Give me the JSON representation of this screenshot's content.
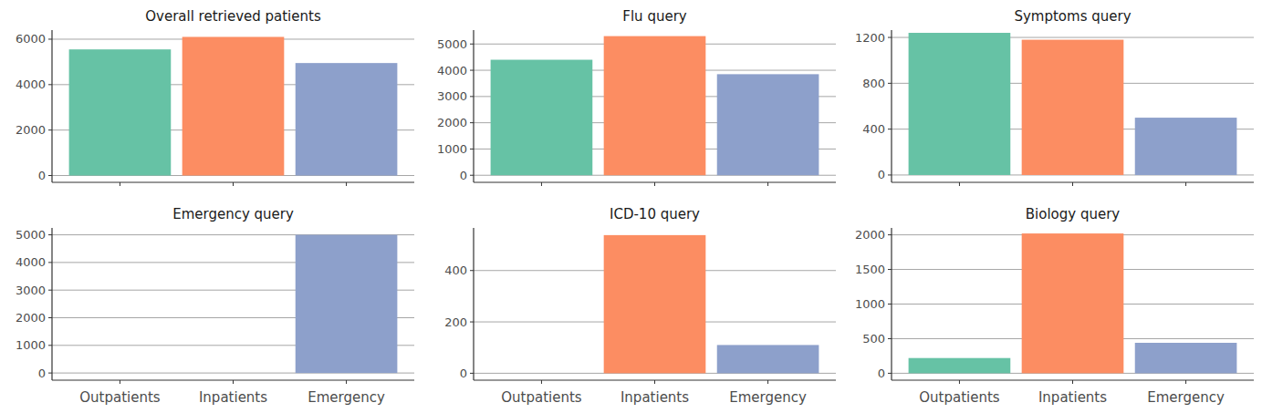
{
  "chart_data": [
    {
      "type": "bar",
      "title": "Overall retrieved patients",
      "categories": [
        "Outpatients",
        "Inpatients",
        "Emergency"
      ],
      "values": [
        5550,
        6100,
        4950
      ],
      "colors": [
        "#66c2a5",
        "#fc8d62",
        "#8da0cb"
      ],
      "ylim": [
        -300,
        6400
      ],
      "yticks": [
        0,
        2000,
        4000,
        6000
      ],
      "grid": true,
      "tick_labels": "y"
    },
    {
      "type": "bar",
      "title": "Flu query",
      "categories": [
        "Outpatients",
        "Inpatients",
        "Emergency"
      ],
      "values": [
        4400,
        5300,
        3850
      ],
      "colors": [
        "#66c2a5",
        "#fc8d62",
        "#8da0cb"
      ],
      "ylim": [
        -270,
        5530
      ],
      "yticks": [
        0,
        1000,
        2000,
        3000,
        4000,
        5000
      ],
      "grid": true,
      "tick_labels": "y"
    },
    {
      "type": "bar",
      "title": "Symptoms query",
      "categories": [
        "Outpatients",
        "Inpatients",
        "Emergency"
      ],
      "values": [
        1240,
        1180,
        500
      ],
      "colors": [
        "#66c2a5",
        "#fc8d62",
        "#8da0cb"
      ],
      "ylim": [
        -64,
        1264
      ],
      "yticks": [
        0,
        400,
        800,
        1200
      ],
      "grid": true,
      "tick_labels": "y"
    },
    {
      "type": "bar",
      "title": "Emergency query",
      "categories": [
        "Outpatients",
        "Inpatients",
        "Emergency"
      ],
      "values": [
        0,
        0,
        5000
      ],
      "colors": [
        "#66c2a5",
        "#fc8d62",
        "#8da0cb"
      ],
      "ylim": [
        -260,
        5250
      ],
      "yticks": [
        0,
        1000,
        2000,
        3000,
        4000,
        5000
      ],
      "grid": true
    },
    {
      "type": "bar",
      "title": "ICD-10 query",
      "categories": [
        "Outpatients",
        "Inpatients",
        "Emergency"
      ],
      "values": [
        0,
        538,
        110
      ],
      "colors": [
        "#66c2a5",
        "#fc8d62",
        "#8da0cb"
      ],
      "ylim": [
        -27,
        566
      ],
      "yticks": [
        0,
        200,
        400
      ],
      "grid": true
    },
    {
      "type": "bar",
      "title": "Biology query",
      "categories": [
        "Outpatients",
        "Inpatients",
        "Emergency"
      ],
      "values": [
        220,
        2020,
        440
      ],
      "colors": [
        "#66c2a5",
        "#fc8d62",
        "#8da0cb"
      ],
      "ylim": [
        -100,
        2100
      ],
      "yticks": [
        0,
        500,
        1000,
        1500,
        2000
      ],
      "grid": true
    }
  ]
}
